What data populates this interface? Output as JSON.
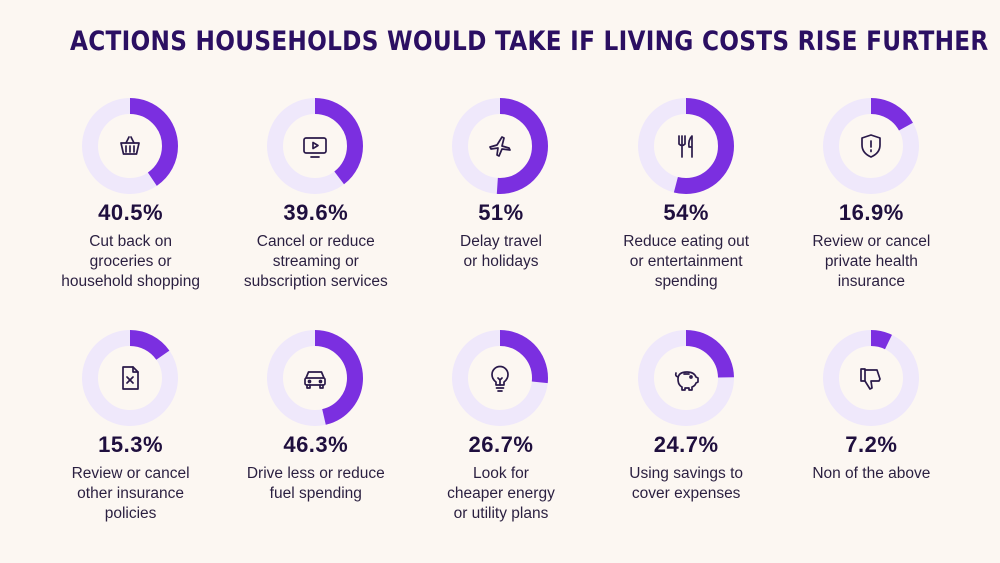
{
  "title": "ACTIONS HOUSEHOLDS WOULD TAKE IF LIVING COSTS RISE FURTHER",
  "colors": {
    "accent": "#7b2fe0",
    "track": "#efe8fb",
    "background": "#fcf7f2",
    "title": "#2b0f62"
  },
  "chart_data": {
    "type": "pie",
    "title": "ACTIONS HOUSEHOLDS WOULD TAKE IF LIVING COSTS RISE FURTHER",
    "unit": "%",
    "items": [
      {
        "value": 40.5,
        "value_label": "40.5%",
        "label_lines": [
          "Cut back on",
          "groceries or",
          "household shopping"
        ],
        "icon": "basket-icon"
      },
      {
        "value": 39.6,
        "value_label": "39.6%",
        "label_lines": [
          "Cancel or reduce",
          "streaming or",
          "subscription services"
        ],
        "icon": "tv-play-icon"
      },
      {
        "value": 51,
        "value_label": "51%",
        "label_lines": [
          "Delay travel",
          "or holidays"
        ],
        "icon": "airplane-icon"
      },
      {
        "value": 54,
        "value_label": "54%",
        "label_lines": [
          "Reduce eating out",
          "or entertainment",
          "spending"
        ],
        "icon": "fork-knife-icon"
      },
      {
        "value": 16.9,
        "value_label": "16.9%",
        "label_lines": [
          "Review or cancel",
          "private health",
          "insurance"
        ],
        "icon": "shield-alert-icon"
      },
      {
        "value": 15.3,
        "value_label": "15.3%",
        "label_lines": [
          "Review or cancel",
          "other insurance",
          "policies"
        ],
        "icon": "document-x-icon"
      },
      {
        "value": 46.3,
        "value_label": "46.3%",
        "label_lines": [
          "Drive less or reduce",
          "fuel spending"
        ],
        "icon": "car-icon"
      },
      {
        "value": 26.7,
        "value_label": "26.7%",
        "label_lines": [
          "Look for",
          "cheaper energy",
          "or utility plans"
        ],
        "icon": "lightbulb-icon"
      },
      {
        "value": 24.7,
        "value_label": "24.7%",
        "label_lines": [
          "Using savings to",
          "cover expenses"
        ],
        "icon": "piggy-bank-icon"
      },
      {
        "value": 7.2,
        "value_label": "7.2%",
        "label_lines": [
          "Non of the above"
        ],
        "icon": "thumbs-down-icon"
      }
    ]
  }
}
